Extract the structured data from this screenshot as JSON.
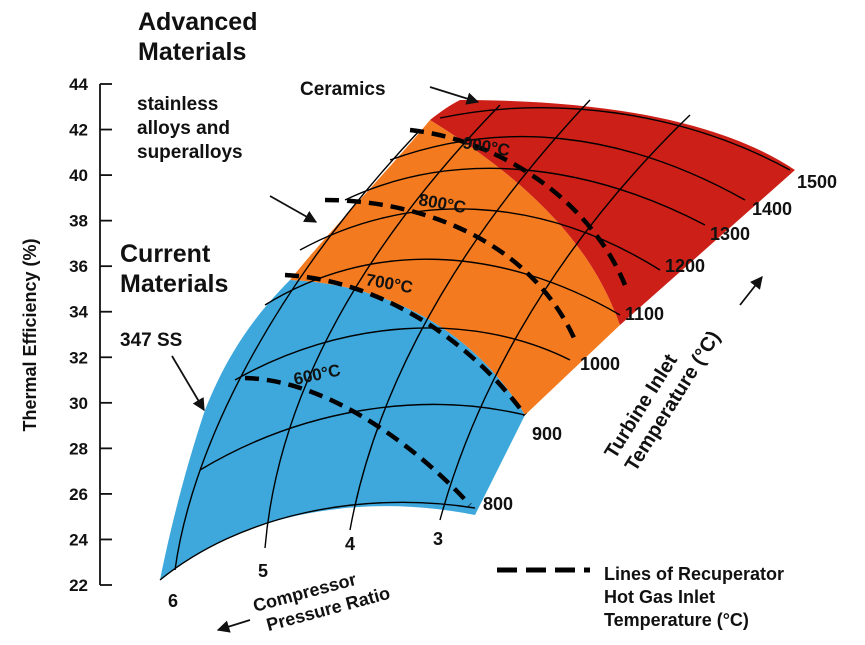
{
  "colors": {
    "current": "#3ea8dc",
    "advanced": "#f47a1f",
    "ceramics": "#cc1f17",
    "mesh": "#000000",
    "axis": "#111111"
  },
  "annotations": {
    "advanced_materials": [
      "Advanced",
      "Materials"
    ],
    "ceramics": "Ceramics",
    "stainless": [
      "stainless",
      "alloys and",
      "superalloys"
    ],
    "current_materials": [
      "Current",
      "Materials"
    ],
    "ss347": "347 SS"
  },
  "legend": {
    "label": [
      "Lines of Recuperator",
      "Hot Gas Inlet",
      "Temperature (°C)"
    ],
    "swatch_style": "dashed-line"
  },
  "chart_data": {
    "type": "surface",
    "title": "",
    "ylabel": "Thermal Efficiency (%)",
    "xlabel": [
      "Compressor",
      "Pressure Ratio"
    ],
    "zlabel": [
      "Turbine Inlet",
      "Temperature (°C)"
    ],
    "y_ticks": [
      22,
      24,
      26,
      28,
      30,
      32,
      34,
      36,
      38,
      40,
      42,
      44
    ],
    "ylim": [
      22,
      44
    ],
    "pressure_ratio_ticks": [
      "6",
      "5",
      "4",
      "3"
    ],
    "turbine_inlet_ticks": [
      "800",
      "900",
      "1000",
      "1100",
      "1200",
      "1300",
      "1400",
      "1500"
    ],
    "recuperator_lines": [
      {
        "label": "600°C",
        "temperature": 600
      },
      {
        "label": "700°C",
        "temperature": 700
      },
      {
        "label": "800°C",
        "temperature": 800
      },
      {
        "label": "900°C",
        "temperature": 900
      }
    ],
    "regions": [
      {
        "name": "Current Materials",
        "sub": "347 SS",
        "max_temperature": 700
      },
      {
        "name": "Advanced Materials",
        "sub": "stainless alloys and superalloys",
        "range": [
          700,
          900
        ]
      },
      {
        "name": "Ceramics",
        "min_temperature": 900
      }
    ],
    "grid": true
  }
}
